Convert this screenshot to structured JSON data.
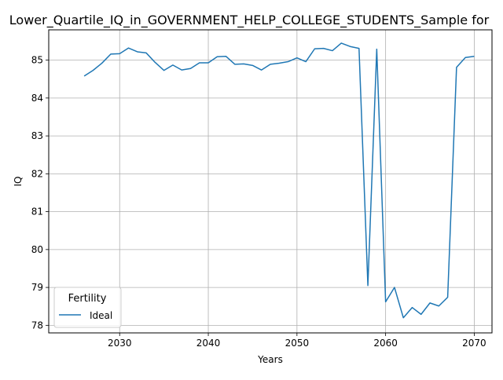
{
  "chart_data": {
    "type": "line",
    "title": "Lower_Quartile_IQ_in_GOVERNMENT_HELP_COLLEGE_STUDENTS_Sample for",
    "xlabel": "Years",
    "ylabel": "IQ",
    "xlim": [
      2022,
      2072
    ],
    "ylim": [
      77.8,
      85.8
    ],
    "xticks": [
      2030,
      2040,
      2050,
      2060,
      2070
    ],
    "yticks": [
      78,
      79,
      80,
      81,
      82,
      83,
      84,
      85
    ],
    "grid": true,
    "legend": {
      "title": "Fertility",
      "location": "lower-left"
    },
    "series": [
      {
        "name": "Ideal",
        "color": "#1f77b4",
        "x": [
          2026,
          2027,
          2028,
          2029,
          2030,
          2031,
          2032,
          2033,
          2034,
          2035,
          2036,
          2037,
          2038,
          2039,
          2040,
          2041,
          2042,
          2043,
          2044,
          2045,
          2046,
          2047,
          2048,
          2049,
          2050,
          2051,
          2052,
          2053,
          2054,
          2055,
          2056,
          2057,
          2058,
          2059,
          2060,
          2061,
          2062,
          2063,
          2064,
          2065,
          2066,
          2067,
          2068,
          2069,
          2070
        ],
        "y": [
          84.58,
          84.73,
          84.92,
          85.16,
          85.17,
          85.32,
          85.22,
          85.19,
          84.94,
          84.73,
          84.87,
          84.74,
          84.78,
          84.93,
          84.93,
          85.09,
          85.1,
          84.89,
          84.9,
          84.86,
          84.74,
          84.89,
          84.92,
          84.96,
          85.06,
          84.96,
          85.3,
          85.31,
          85.25,
          85.45,
          85.36,
          85.31,
          79.05,
          85.29,
          78.62,
          79.0,
          78.2,
          78.47,
          78.29,
          78.59,
          78.51,
          78.74,
          84.81,
          85.07,
          85.1
        ]
      }
    ]
  }
}
